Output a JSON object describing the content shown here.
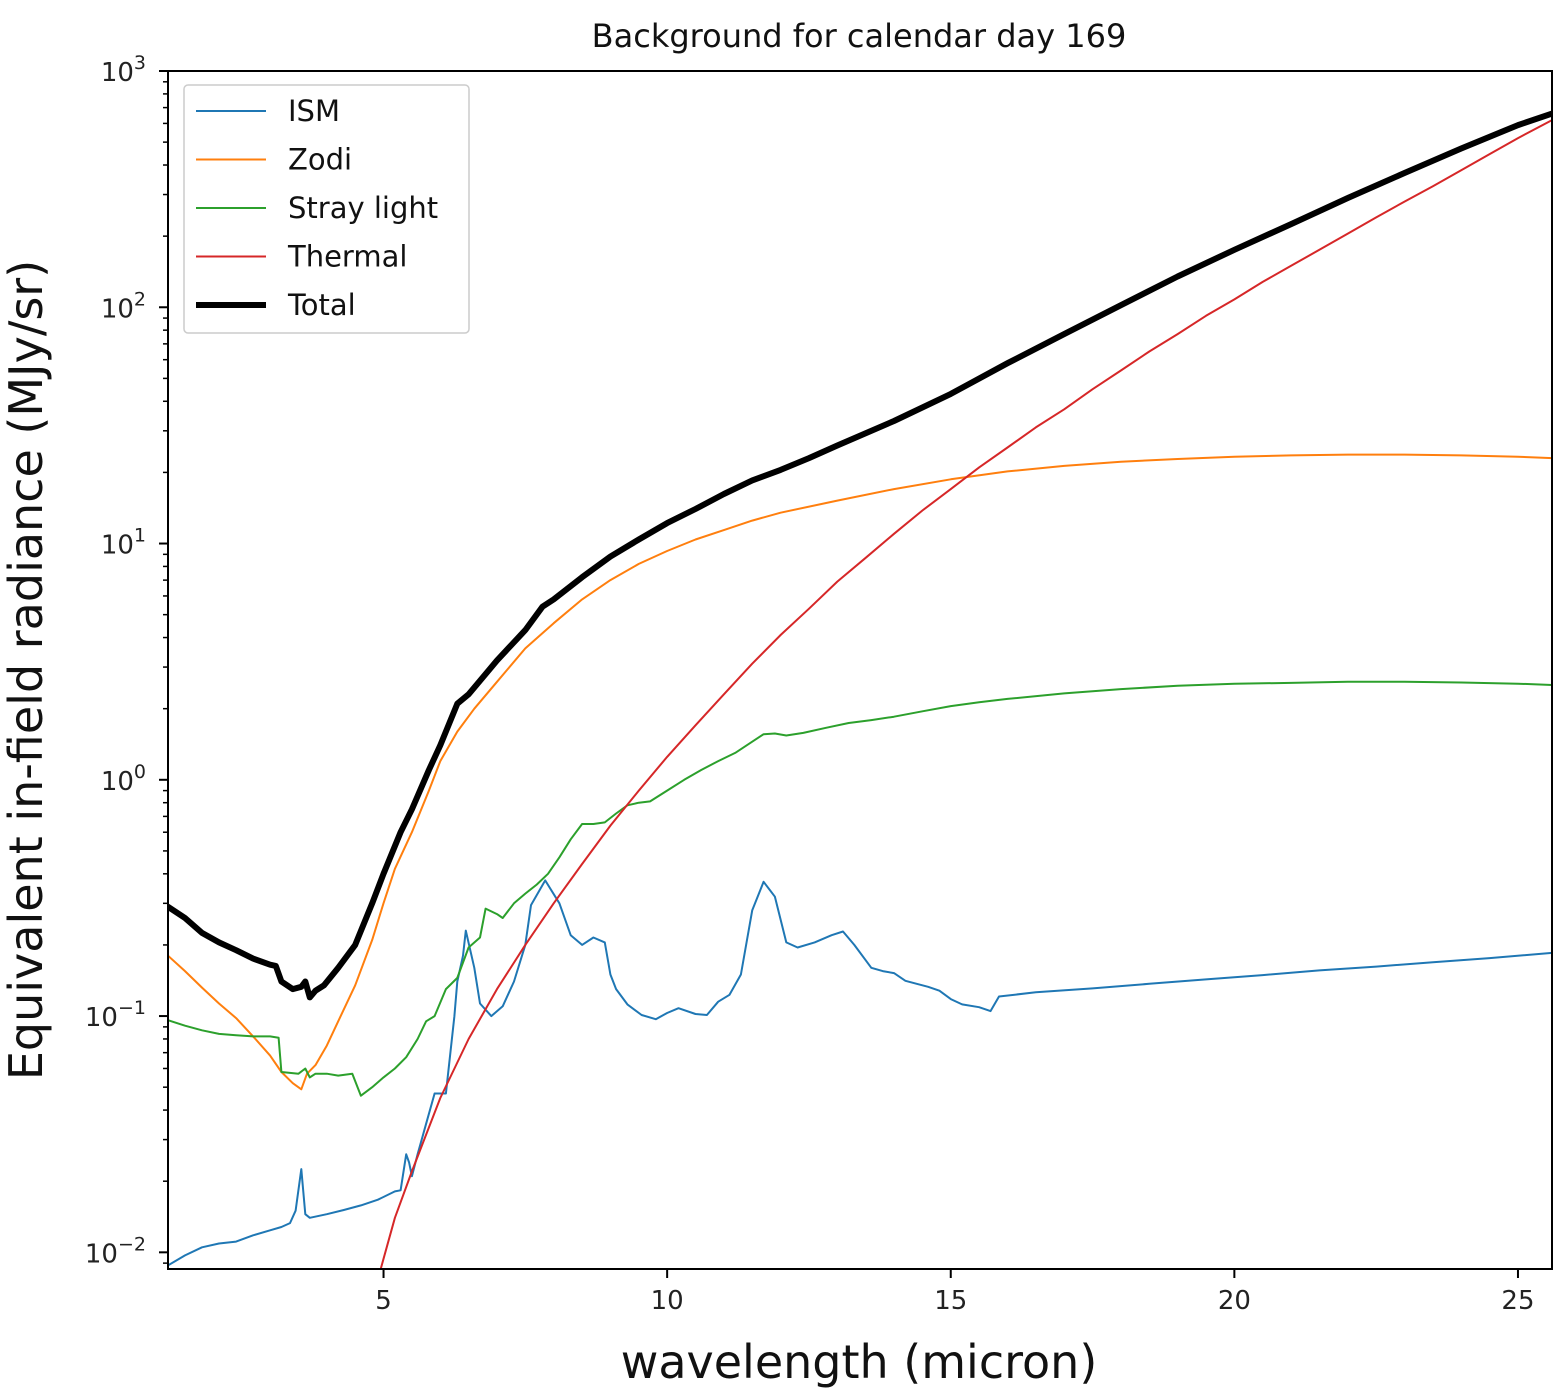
{
  "chart_data": {
    "type": "line",
    "title": "Background for calendar day 169",
    "xlabel": "wavelength (micron)",
    "ylabel": "Equivalent in-field radiance (MJy/sr)",
    "xlim": [
      1.2,
      25.6
    ],
    "ylim": [
      0.0085,
      1000
    ],
    "yscale": "log",
    "x_ticks": [
      {
        "value": 5,
        "label": "5"
      },
      {
        "value": 10,
        "label": "10"
      },
      {
        "value": 15,
        "label": "15"
      },
      {
        "value": 20,
        "label": "20"
      },
      {
        "value": 25,
        "label": "25"
      }
    ],
    "y_ticks": [
      {
        "value": 0.01,
        "base": "10",
        "exp": "−2"
      },
      {
        "value": 0.1,
        "base": "10",
        "exp": "−1"
      },
      {
        "value": 1,
        "base": "10",
        "exp": "0"
      },
      {
        "value": 10,
        "base": "10",
        "exp": "1"
      },
      {
        "value": 100,
        "base": "10",
        "exp": "2"
      },
      {
        "value": 1000,
        "base": "10",
        "exp": "3"
      }
    ],
    "grid": false,
    "legend_position": "top-left",
    "series": [
      {
        "name": "ISM",
        "color": "#1f77b4",
        "width": 2,
        "points": [
          [
            1.2,
            0.0088
          ],
          [
            1.5,
            0.0097
          ],
          [
            1.8,
            0.0105
          ],
          [
            2.1,
            0.0109
          ],
          [
            2.4,
            0.0111
          ],
          [
            2.7,
            0.0118
          ],
          [
            3.0,
            0.0124
          ],
          [
            3.2,
            0.0128
          ],
          [
            3.35,
            0.0133
          ],
          [
            3.45,
            0.015
          ],
          [
            3.55,
            0.0225
          ],
          [
            3.62,
            0.0145
          ],
          [
            3.7,
            0.014
          ],
          [
            4.0,
            0.0145
          ],
          [
            4.3,
            0.0151
          ],
          [
            4.6,
            0.0158
          ],
          [
            4.9,
            0.0167
          ],
          [
            5.2,
            0.0181
          ],
          [
            5.3,
            0.0183
          ],
          [
            5.4,
            0.026
          ],
          [
            5.45,
            0.024
          ],
          [
            5.5,
            0.021
          ],
          [
            5.6,
            0.026
          ],
          [
            5.75,
            0.035
          ],
          [
            5.9,
            0.047
          ],
          [
            6.1,
            0.047
          ],
          [
            6.25,
            0.1
          ],
          [
            6.3,
            0.14
          ],
          [
            6.4,
            0.18
          ],
          [
            6.45,
            0.23
          ],
          [
            6.6,
            0.16
          ],
          [
            6.7,
            0.113
          ],
          [
            6.9,
            0.1
          ],
          [
            7.1,
            0.11
          ],
          [
            7.3,
            0.14
          ],
          [
            7.5,
            0.2
          ],
          [
            7.6,
            0.295
          ],
          [
            7.85,
            0.375
          ],
          [
            8.1,
            0.3
          ],
          [
            8.3,
            0.22
          ],
          [
            8.5,
            0.2
          ],
          [
            8.7,
            0.215
          ],
          [
            8.9,
            0.205
          ],
          [
            9.0,
            0.15
          ],
          [
            9.1,
            0.13
          ],
          [
            9.3,
            0.112
          ],
          [
            9.55,
            0.101
          ],
          [
            9.8,
            0.097
          ],
          [
            10.0,
            0.103
          ],
          [
            10.2,
            0.108
          ],
          [
            10.5,
            0.102
          ],
          [
            10.7,
            0.101
          ],
          [
            10.9,
            0.115
          ],
          [
            11.1,
            0.123
          ],
          [
            11.3,
            0.15
          ],
          [
            11.5,
            0.28
          ],
          [
            11.7,
            0.37
          ],
          [
            11.9,
            0.32
          ],
          [
            12.1,
            0.205
          ],
          [
            12.3,
            0.195
          ],
          [
            12.6,
            0.205
          ],
          [
            12.9,
            0.22
          ],
          [
            13.1,
            0.228
          ],
          [
            13.3,
            0.2
          ],
          [
            13.6,
            0.16
          ],
          [
            13.8,
            0.155
          ],
          [
            14.0,
            0.152
          ],
          [
            14.2,
            0.141
          ],
          [
            14.4,
            0.137
          ],
          [
            14.6,
            0.133
          ],
          [
            14.8,
            0.128
          ],
          [
            15.0,
            0.118
          ],
          [
            15.2,
            0.112
          ],
          [
            15.5,
            0.109
          ],
          [
            15.7,
            0.105
          ],
          [
            15.85,
            0.121
          ],
          [
            16.5,
            0.126
          ],
          [
            17.5,
            0.131
          ],
          [
            18.5,
            0.137
          ],
          [
            19.5,
            0.143
          ],
          [
            20.5,
            0.149
          ],
          [
            21.5,
            0.156
          ],
          [
            22.5,
            0.162
          ],
          [
            23.5,
            0.169
          ],
          [
            24.5,
            0.176
          ],
          [
            25.6,
            0.185
          ]
        ]
      },
      {
        "name": "Zodi",
        "color": "#ff7f0e",
        "width": 2,
        "points": [
          [
            1.2,
            0.18
          ],
          [
            1.5,
            0.155
          ],
          [
            1.8,
            0.132
          ],
          [
            2.1,
            0.113
          ],
          [
            2.4,
            0.098
          ],
          [
            2.7,
            0.082
          ],
          [
            3.0,
            0.068
          ],
          [
            3.2,
            0.058
          ],
          [
            3.4,
            0.052
          ],
          [
            3.55,
            0.049
          ],
          [
            3.65,
            0.057
          ],
          [
            3.8,
            0.062
          ],
          [
            4.0,
            0.075
          ],
          [
            4.2,
            0.095
          ],
          [
            4.5,
            0.135
          ],
          [
            4.8,
            0.21
          ],
          [
            5.0,
            0.3
          ],
          [
            5.2,
            0.42
          ],
          [
            5.5,
            0.6
          ],
          [
            5.8,
            0.9
          ],
          [
            6.0,
            1.2
          ],
          [
            6.3,
            1.6
          ],
          [
            6.6,
            2.0
          ],
          [
            7.0,
            2.6
          ],
          [
            7.5,
            3.6
          ],
          [
            8.0,
            4.6
          ],
          [
            8.5,
            5.8
          ],
          [
            9.0,
            7.0
          ],
          [
            9.5,
            8.2
          ],
          [
            10.0,
            9.3
          ],
          [
            10.5,
            10.4
          ],
          [
            11.0,
            11.4
          ],
          [
            11.5,
            12.5
          ],
          [
            12.0,
            13.5
          ],
          [
            13.0,
            15.2
          ],
          [
            14.0,
            17.0
          ],
          [
            15.0,
            18.7
          ],
          [
            16.0,
            20.2
          ],
          [
            17.0,
            21.3
          ],
          [
            18.0,
            22.2
          ],
          [
            19.0,
            22.8
          ],
          [
            20.0,
            23.3
          ],
          [
            21.0,
            23.6
          ],
          [
            22.0,
            23.8
          ],
          [
            23.0,
            23.8
          ],
          [
            24.0,
            23.6
          ],
          [
            25.0,
            23.3
          ],
          [
            25.6,
            23.0
          ]
        ]
      },
      {
        "name": "Stray light",
        "color": "#2ca02c",
        "width": 2,
        "points": [
          [
            1.2,
            0.096
          ],
          [
            1.5,
            0.091
          ],
          [
            1.8,
            0.087
          ],
          [
            2.1,
            0.084
          ],
          [
            2.4,
            0.083
          ],
          [
            2.7,
            0.082
          ],
          [
            3.0,
            0.082
          ],
          [
            3.15,
            0.081
          ],
          [
            3.2,
            0.058
          ],
          [
            3.5,
            0.057
          ],
          [
            3.62,
            0.06
          ],
          [
            3.7,
            0.055
          ],
          [
            3.8,
            0.057
          ],
          [
            4.0,
            0.057
          ],
          [
            4.2,
            0.056
          ],
          [
            4.45,
            0.057
          ],
          [
            4.6,
            0.046
          ],
          [
            4.8,
            0.05
          ],
          [
            5.0,
            0.055
          ],
          [
            5.2,
            0.06
          ],
          [
            5.4,
            0.067
          ],
          [
            5.6,
            0.08
          ],
          [
            5.75,
            0.095
          ],
          [
            5.9,
            0.1
          ],
          [
            6.1,
            0.13
          ],
          [
            6.3,
            0.145
          ],
          [
            6.5,
            0.195
          ],
          [
            6.7,
            0.215
          ],
          [
            6.8,
            0.285
          ],
          [
            7.0,
            0.27
          ],
          [
            7.1,
            0.26
          ],
          [
            7.3,
            0.3
          ],
          [
            7.5,
            0.33
          ],
          [
            7.7,
            0.36
          ],
          [
            7.9,
            0.4
          ],
          [
            8.1,
            0.47
          ],
          [
            8.3,
            0.56
          ],
          [
            8.5,
            0.65
          ],
          [
            8.7,
            0.65
          ],
          [
            8.9,
            0.66
          ],
          [
            9.1,
            0.72
          ],
          [
            9.3,
            0.78
          ],
          [
            9.5,
            0.8
          ],
          [
            9.7,
            0.81
          ],
          [
            10.0,
            0.9
          ],
          [
            10.3,
            1.0
          ],
          [
            10.6,
            1.1
          ],
          [
            10.9,
            1.2
          ],
          [
            11.2,
            1.3
          ],
          [
            11.5,
            1.45
          ],
          [
            11.7,
            1.56
          ],
          [
            11.9,
            1.57
          ],
          [
            12.1,
            1.54
          ],
          [
            12.4,
            1.58
          ],
          [
            12.8,
            1.66
          ],
          [
            13.2,
            1.74
          ],
          [
            13.6,
            1.79
          ],
          [
            14.0,
            1.85
          ],
          [
            14.5,
            1.95
          ],
          [
            15.0,
            2.05
          ],
          [
            15.5,
            2.13
          ],
          [
            16.0,
            2.2
          ],
          [
            17.0,
            2.32
          ],
          [
            18.0,
            2.42
          ],
          [
            19.0,
            2.5
          ],
          [
            20.0,
            2.55
          ],
          [
            21.0,
            2.57
          ],
          [
            22.0,
            2.6
          ],
          [
            23.0,
            2.6
          ],
          [
            24.0,
            2.58
          ],
          [
            25.0,
            2.55
          ],
          [
            25.6,
            2.52
          ]
        ]
      },
      {
        "name": "Thermal",
        "color": "#d62728",
        "width": 2,
        "points": [
          [
            4.95,
            0.0085
          ],
          [
            5.2,
            0.014
          ],
          [
            5.5,
            0.022
          ],
          [
            6.0,
            0.045
          ],
          [
            6.5,
            0.08
          ],
          [
            7.0,
            0.13
          ],
          [
            7.5,
            0.2
          ],
          [
            8.0,
            0.3
          ],
          [
            8.5,
            0.44
          ],
          [
            9.0,
            0.64
          ],
          [
            9.5,
            0.9
          ],
          [
            10.0,
            1.25
          ],
          [
            10.5,
            1.7
          ],
          [
            11.0,
            2.3
          ],
          [
            11.5,
            3.1
          ],
          [
            12.0,
            4.1
          ],
          [
            12.5,
            5.3
          ],
          [
            13.0,
            6.9
          ],
          [
            13.5,
            8.7
          ],
          [
            14.0,
            11.0
          ],
          [
            14.5,
            13.8
          ],
          [
            15.0,
            17.0
          ],
          [
            15.5,
            21.0
          ],
          [
            16.0,
            25.5
          ],
          [
            16.5,
            31.0
          ],
          [
            17.0,
            37.0
          ],
          [
            17.5,
            45.0
          ],
          [
            18.0,
            54.0
          ],
          [
            18.5,
            65.0
          ],
          [
            19.0,
            77.0
          ],
          [
            19.5,
            92.0
          ],
          [
            20.0,
            108.0
          ],
          [
            20.5,
            128.0
          ],
          [
            21.0,
            150.0
          ],
          [
            21.5,
            175.0
          ],
          [
            22.0,
            205.0
          ],
          [
            22.5,
            240.0
          ],
          [
            23.0,
            280.0
          ],
          [
            23.5,
            325.0
          ],
          [
            24.0,
            380.0
          ],
          [
            24.5,
            445.0
          ],
          [
            25.0,
            520.0
          ],
          [
            25.6,
            620.0
          ]
        ]
      },
      {
        "name": "Total",
        "color": "#000000",
        "width": 6,
        "points": [
          [
            1.2,
            0.29
          ],
          [
            1.5,
            0.26
          ],
          [
            1.8,
            0.225
          ],
          [
            2.1,
            0.205
          ],
          [
            2.4,
            0.19
          ],
          [
            2.7,
            0.175
          ],
          [
            3.0,
            0.165
          ],
          [
            3.1,
            0.163
          ],
          [
            3.2,
            0.14
          ],
          [
            3.4,
            0.13
          ],
          [
            3.55,
            0.133
          ],
          [
            3.62,
            0.14
          ],
          [
            3.7,
            0.12
          ],
          [
            3.8,
            0.128
          ],
          [
            3.95,
            0.135
          ],
          [
            4.2,
            0.16
          ],
          [
            4.5,
            0.2
          ],
          [
            4.8,
            0.3
          ],
          [
            5.0,
            0.4
          ],
          [
            5.3,
            0.6
          ],
          [
            5.5,
            0.75
          ],
          [
            5.8,
            1.1
          ],
          [
            6.0,
            1.4
          ],
          [
            6.3,
            2.1
          ],
          [
            6.5,
            2.3
          ],
          [
            6.8,
            2.8
          ],
          [
            7.0,
            3.2
          ],
          [
            7.5,
            4.3
          ],
          [
            7.8,
            5.4
          ],
          [
            8.0,
            5.8
          ],
          [
            8.5,
            7.2
          ],
          [
            9.0,
            8.8
          ],
          [
            9.5,
            10.4
          ],
          [
            10.0,
            12.2
          ],
          [
            10.5,
            14.0
          ],
          [
            11.0,
            16.2
          ],
          [
            11.5,
            18.5
          ],
          [
            12.0,
            20.5
          ],
          [
            12.5,
            23.0
          ],
          [
            13.0,
            26.0
          ],
          [
            14.0,
            33.0
          ],
          [
            15.0,
            43.0
          ],
          [
            16.0,
            58.0
          ],
          [
            17.0,
            77.0
          ],
          [
            18.0,
            102.0
          ],
          [
            19.0,
            135.0
          ],
          [
            20.0,
            175.0
          ],
          [
            21.0,
            225.0
          ],
          [
            22.0,
            290.0
          ],
          [
            23.0,
            370.0
          ],
          [
            24.0,
            470.0
          ],
          [
            25.0,
            590.0
          ],
          [
            25.6,
            660.0
          ]
        ]
      }
    ]
  }
}
